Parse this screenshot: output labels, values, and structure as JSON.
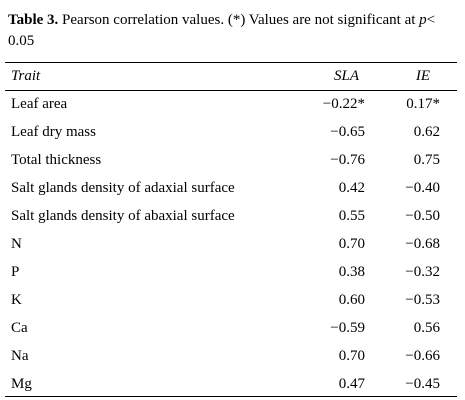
{
  "caption": {
    "label": "Table 3.",
    "text_1": " Pearson correlation values. (*) Values are not significant at ",
    "p_symbol": "p",
    "text_2": "< 0.05"
  },
  "table": {
    "headers": {
      "trait": "Trait",
      "sla": "SLA",
      "ie": "IE"
    },
    "rows": [
      {
        "trait": "Leaf area",
        "sla": "−0.22*",
        "ie": "0.17*"
      },
      {
        "trait": "Leaf dry mass",
        "sla": "−0.65",
        "ie": "0.62"
      },
      {
        "trait": "Total thickness",
        "sla": "−0.76",
        "ie": "0.75"
      },
      {
        "trait": "Salt glands density of adaxial surface",
        "sla": "0.42",
        "ie": "−0.40"
      },
      {
        "trait": "Salt glands density of abaxial surface",
        "sla": "0.55",
        "ie": "−0.50"
      },
      {
        "trait": "N",
        "sla": "0.70",
        "ie": "−0.68"
      },
      {
        "trait": "P",
        "sla": "0.38",
        "ie": "−0.32"
      },
      {
        "trait": "K",
        "sla": "0.60",
        "ie": "−0.53"
      },
      {
        "trait": "Ca",
        "sla": "−0.59",
        "ie": "0.56"
      },
      {
        "trait": "Na",
        "sla": "0.70",
        "ie": "−0.66"
      },
      {
        "trait": "Mg",
        "sla": "0.47",
        "ie": "−0.45"
      }
    ]
  }
}
